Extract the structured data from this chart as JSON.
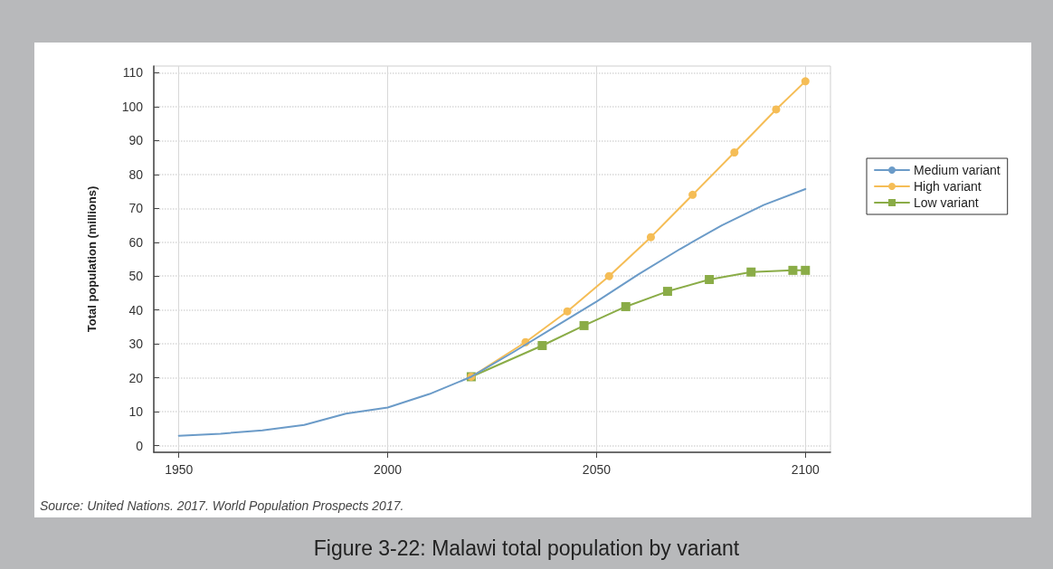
{
  "chart_data": {
    "type": "line",
    "title": "Figure 3-22: Malawi total population by variant",
    "ylabel": "Total population (millions)",
    "annotations": [
      "Source: United Nations. 2017. World Population Prospects 2017."
    ],
    "xlim": [
      1944,
      2106
    ],
    "xticks": [
      1950,
      2000,
      2050,
      2100
    ],
    "ylim": [
      -2,
      112
    ],
    "yticks": [
      0,
      10,
      20,
      30,
      40,
      50,
      60,
      70,
      80,
      90,
      100,
      110
    ],
    "grid": true,
    "legend": "right",
    "line_style": "solid",
    "series": [
      {
        "name": "Medium variant",
        "color": "#6b9bc8",
        "marker": "none",
        "x": [
          1950,
          1960,
          1970,
          1980,
          1990,
          2000,
          2010,
          2020,
          2030,
          2040,
          2050,
          2060,
          2070,
          2080,
          2090,
          2100
        ],
        "values": [
          2.9,
          3.5,
          4.5,
          6.1,
          9.4,
          11.2,
          15.2,
          20.3,
          27.5,
          35,
          42.5,
          50.5,
          58,
          65,
          71,
          75.7
        ]
      },
      {
        "name": "High variant",
        "color": "#f5bd56",
        "marker": "circle",
        "x": [
          2020,
          2033,
          2043,
          2053,
          2063,
          2073,
          2083,
          2093,
          2100
        ],
        "values": [
          20.3,
          30.5,
          39.6,
          50,
          61.5,
          74,
          86.5,
          99.2,
          107.5
        ]
      },
      {
        "name": "Low variant",
        "color": "#8aac47",
        "marker": "square",
        "x": [
          2020,
          2037,
          2047,
          2057,
          2067,
          2077,
          2087,
          2097,
          2100
        ],
        "values": [
          20.3,
          29.5,
          35.4,
          41,
          45.5,
          49,
          51.2,
          51.7,
          51.7
        ]
      }
    ]
  }
}
